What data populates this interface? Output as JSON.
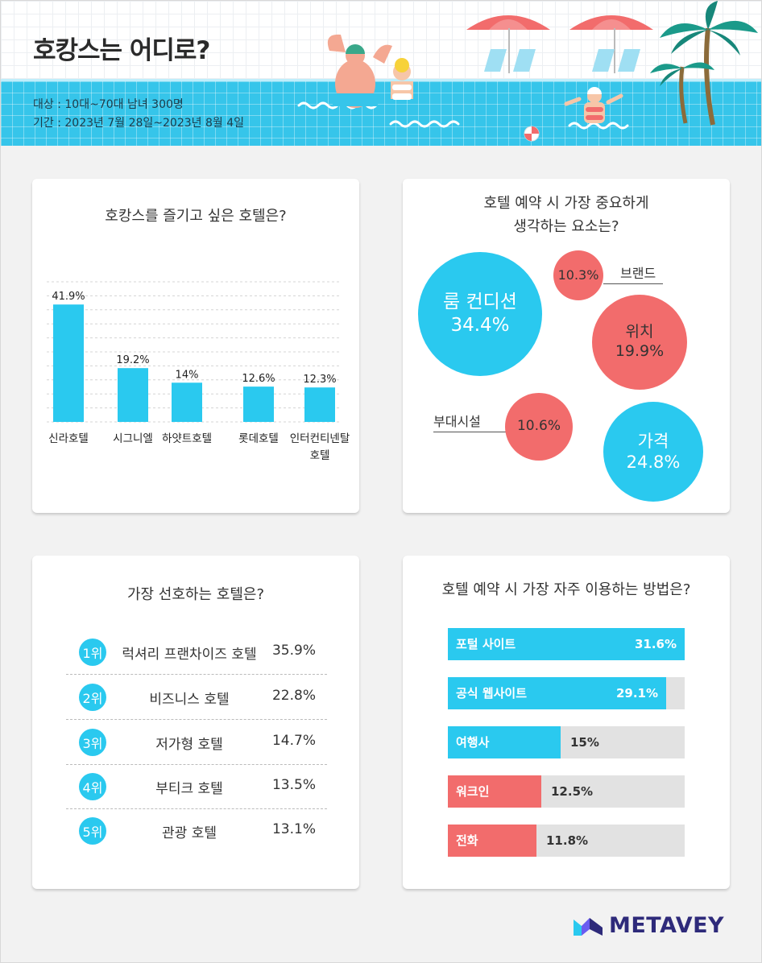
{
  "header": {
    "title": "호캉스는 어디로?",
    "target": "대상 : 10대~70대 남녀 300명",
    "period": "기간 : 2023년 7월 28일~2023년 8월 4일"
  },
  "colors": {
    "blue": "#2ac9ef",
    "red": "#f26c6c",
    "gray": "#e2e2e2",
    "pool": "#36c5ea"
  },
  "chart_data": [
    {
      "type": "bar",
      "title": "호캉스를 즐기고 싶은 호텔은?",
      "categories": [
        "신라호텔",
        "시그니엘",
        "하얏트호텔",
        "롯데호텔",
        "인터컨티넨탈\n호텔"
      ],
      "category_lines": [
        [
          "신라호텔"
        ],
        [
          "시그니엘"
        ],
        [
          "하얏트호텔"
        ],
        [
          "롯데호텔"
        ],
        [
          "인터컨티넨탈",
          "호텔"
        ]
      ],
      "values": [
        41.9,
        19.2,
        14,
        12.6,
        12.3
      ],
      "value_labels": [
        "41.9%",
        "19.2%",
        "14%",
        "12.6%",
        "12.3%"
      ],
      "ylim": [
        0,
        50
      ],
      "grid": true,
      "color": "#2ac9ef"
    },
    {
      "type": "bubble",
      "title_lines": [
        "호텔 예약 시 가장 중요하게",
        "생각하는 요소는?"
      ],
      "items": [
        {
          "name": "룸 컨디션",
          "value": 34.4,
          "label": "34.4%",
          "color": "blue"
        },
        {
          "name": "브랜드",
          "value": 10.3,
          "label": "10.3%",
          "color": "red"
        },
        {
          "name": "위치",
          "value": 19.9,
          "label": "19.9%",
          "color": "red"
        },
        {
          "name": "부대시설",
          "value": 10.6,
          "label": "10.6%",
          "color": "red"
        },
        {
          "name": "가격",
          "value": 24.8,
          "label": "24.8%",
          "color": "blue"
        }
      ]
    },
    {
      "type": "table",
      "title": "가장 선호하는 호텔은?",
      "rows": [
        {
          "rank": "1위",
          "name": "럭셔리 프랜차이즈 호텔",
          "value": "35.9%"
        },
        {
          "rank": "2위",
          "name": "비즈니스 호텔",
          "value": "22.8%"
        },
        {
          "rank": "3위",
          "name": "저가형 호텔",
          "value": "14.7%"
        },
        {
          "rank": "4위",
          "name": "부티크 호텔",
          "value": "13.5%"
        },
        {
          "rank": "5위",
          "name": "관광 호텔",
          "value": "13.1%"
        }
      ]
    },
    {
      "type": "bar",
      "orientation": "horizontal",
      "title": "호텔 예약 시 가장 자주 이용하는 방법은?",
      "categories": [
        "포털 사이트",
        "공식 웹사이트",
        "여행사",
        "워크인",
        "전화"
      ],
      "values": [
        31.6,
        29.1,
        15,
        12.5,
        11.8
      ],
      "value_labels": [
        "31.6%",
        "29.1%",
        "15%",
        "12.5%",
        "11.8%"
      ],
      "bar_colors": [
        "blue",
        "blue",
        "blue",
        "red",
        "red"
      ],
      "xlim": [
        0,
        31.6
      ]
    }
  ],
  "brand": {
    "name": "METAVEY"
  }
}
